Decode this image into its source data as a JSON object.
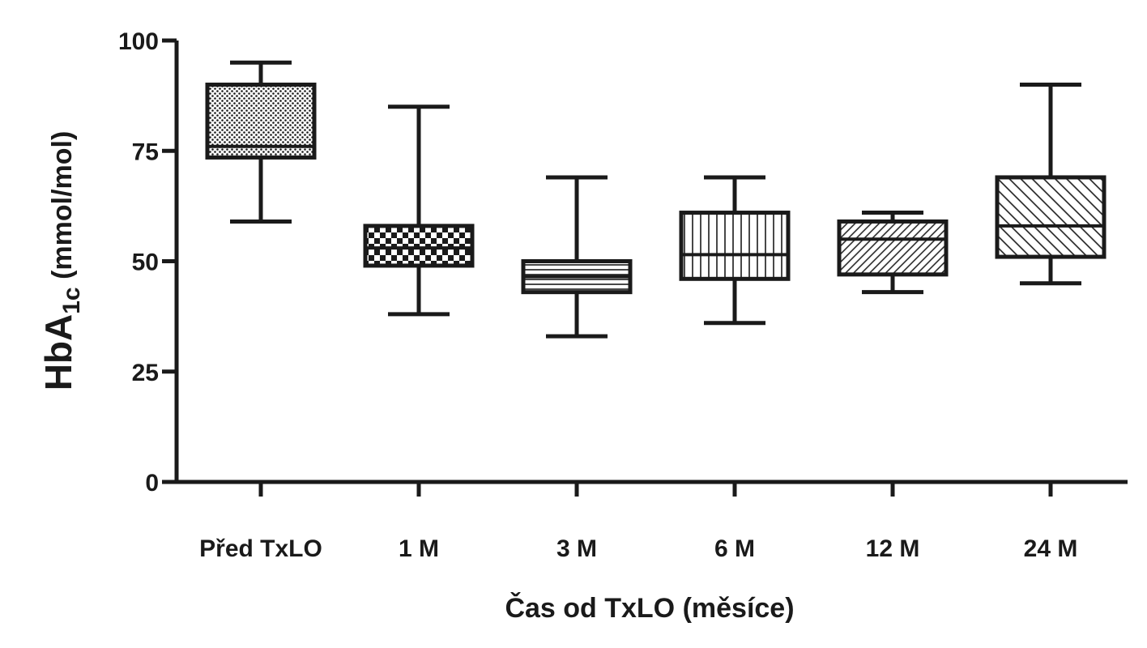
{
  "chart_data": {
    "type": "box",
    "title": "",
    "ylabel": {
      "main": "HbA",
      "sub": "1c",
      "rest": " (mmol/mol)"
    },
    "xlabel": "Čas od TxLO (měsíce)",
    "ylim": [
      0,
      100
    ],
    "yticks": [
      "0",
      "25",
      "50",
      "75",
      "100"
    ],
    "grid": false,
    "categories": [
      "Před TxLO",
      "1 M",
      "3 M",
      "6 M",
      "12 M",
      "24 M"
    ],
    "boxes": [
      {
        "category": "Před TxLO",
        "min": 59,
        "q1": 73.5,
        "median": 76,
        "q3": 90,
        "max": 95,
        "pattern": "dots"
      },
      {
        "category": "1 M",
        "min": 38,
        "q1": 49,
        "median": 53,
        "q3": 58,
        "max": 85,
        "pattern": "checker"
      },
      {
        "category": "3 M",
        "min": 33,
        "q1": 43,
        "median": 46.5,
        "q3": 50,
        "max": 69,
        "pattern": "horizontal-lines"
      },
      {
        "category": "6 M",
        "min": 36,
        "q1": 46,
        "median": 51.5,
        "q3": 61,
        "max": 69,
        "pattern": "vertical-lines"
      },
      {
        "category": "12 M",
        "min": 43,
        "q1": 47,
        "median": 55,
        "q3": 59,
        "max": 61,
        "pattern": "diagonal-fine"
      },
      {
        "category": "24 M",
        "min": 45,
        "q1": 51,
        "median": 58,
        "q3": 69,
        "max": 90,
        "pattern": "diagonal-coarse"
      }
    ],
    "colors": {
      "ink": "#1a1a1a",
      "background": "#ffffff"
    }
  }
}
